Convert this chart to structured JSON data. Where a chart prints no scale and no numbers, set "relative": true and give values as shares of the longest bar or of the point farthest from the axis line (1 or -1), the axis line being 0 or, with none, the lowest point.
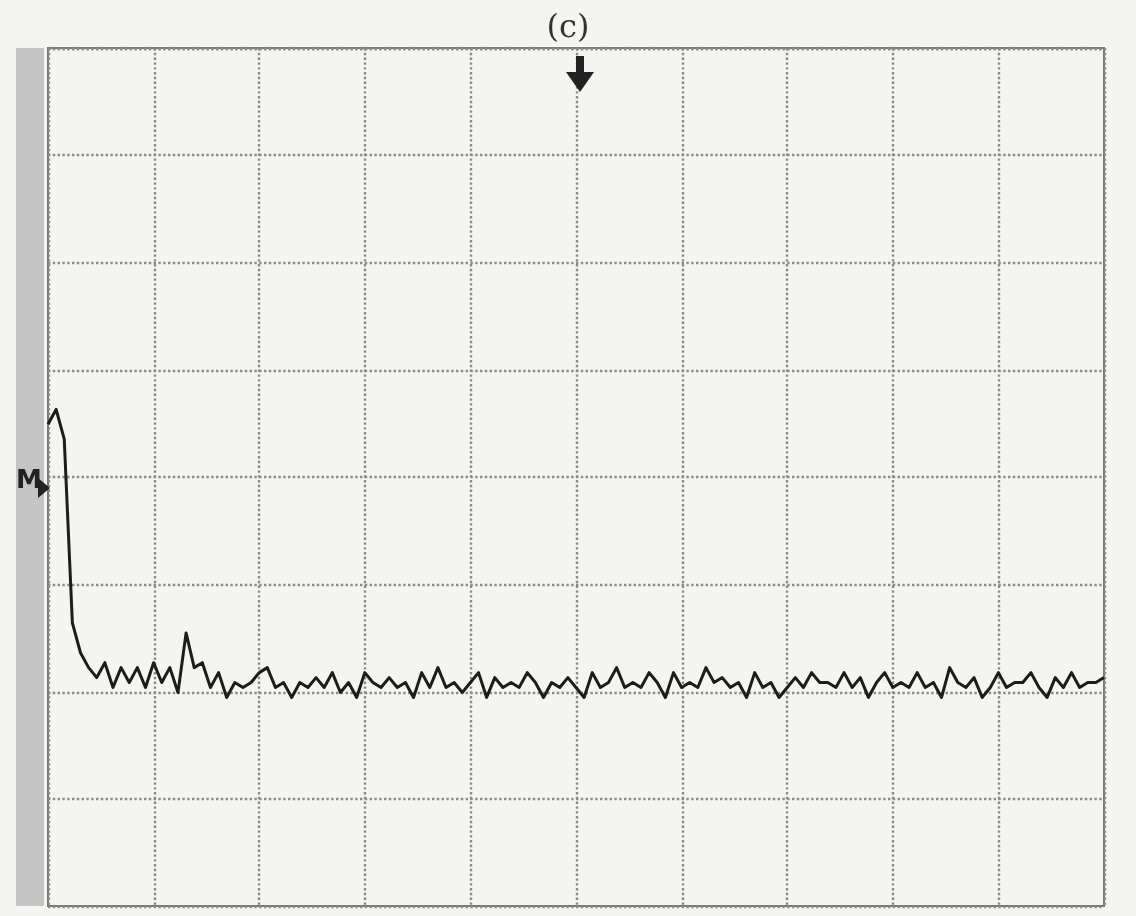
{
  "chart_data": {
    "type": "line",
    "title": "(c)",
    "relative": true,
    "grid": true,
    "marker": "none",
    "color": "#1c1c1c",
    "annotations": [
      "M"
    ],
    "categories": [
      null,
      null,
      null,
      null,
      null,
      null,
      null,
      null,
      null,
      null,
      null,
      null,
      null,
      null,
      null,
      null,
      null,
      null,
      null,
      null,
      null,
      null,
      null,
      null,
      null,
      null,
      null,
      null,
      null,
      null,
      null,
      null,
      null,
      null,
      null,
      null,
      null,
      null,
      null,
      null,
      null,
      null,
      null,
      null,
      null,
      null,
      null,
      null,
      null,
      null,
      null,
      null,
      null,
      null,
      null,
      null,
      null,
      null,
      null,
      null,
      null,
      null,
      null,
      null,
      null,
      null,
      null,
      null,
      null,
      null,
      null,
      null,
      null,
      null,
      null,
      null,
      null,
      null,
      null,
      null,
      null,
      null,
      null,
      null,
      null,
      null,
      null,
      null,
      null,
      null,
      null,
      null,
      null,
      null,
      null,
      null,
      null,
      null,
      null,
      null,
      null,
      null,
      null,
      null,
      null,
      null,
      null,
      null,
      null,
      null,
      null,
      null,
      null,
      null,
      null,
      null,
      null,
      null,
      null,
      null,
      null,
      null,
      null,
      null,
      null,
      null,
      null,
      null,
      null,
      null,
      null
    ],
    "values": [
      0.97,
      1.0,
      0.94,
      0.57,
      0.51,
      0.48,
      0.46,
      0.49,
      0.44,
      0.48,
      0.45,
      0.48,
      0.44,
      0.49,
      0.45,
      0.48,
      0.43,
      0.55,
      0.48,
      0.49,
      0.44,
      0.47,
      0.42,
      0.45,
      0.44,
      0.45,
      0.47,
      0.48,
      0.44,
      0.45,
      0.42,
      0.45,
      0.44,
      0.46,
      0.44,
      0.47,
      0.43,
      0.45,
      0.42,
      0.47,
      0.45,
      0.44,
      0.46,
      0.44,
      0.45,
      0.42,
      0.47,
      0.44,
      0.48,
      0.44,
      0.45,
      0.43,
      0.45,
      0.47,
      0.42,
      0.46,
      0.44,
      0.45,
      0.44,
      0.47,
      0.45,
      0.42,
      0.45,
      0.44,
      0.46,
      0.44,
      0.42,
      0.47,
      0.44,
      0.45,
      0.48,
      0.44,
      0.45,
      0.44,
      0.47,
      0.45,
      0.42,
      0.47,
      0.44,
      0.45,
      0.44,
      0.48,
      0.45,
      0.46,
      0.44,
      0.45,
      0.42,
      0.47,
      0.44,
      0.45,
      0.42,
      0.44,
      0.46,
      0.44,
      0.47,
      0.45,
      0.45,
      0.44,
      0.47,
      0.44,
      0.46,
      0.42,
      0.45,
      0.47,
      0.44,
      0.45,
      0.44,
      0.47,
      0.44,
      0.45,
      0.42,
      0.48,
      0.45,
      0.44,
      0.46,
      0.42,
      0.44,
      0.47,
      0.44,
      0.45,
      0.45,
      0.47,
      0.44,
      0.42,
      0.46,
      0.44,
      0.47,
      0.44,
      0.45,
      0.45,
      0.46
    ]
  }
}
